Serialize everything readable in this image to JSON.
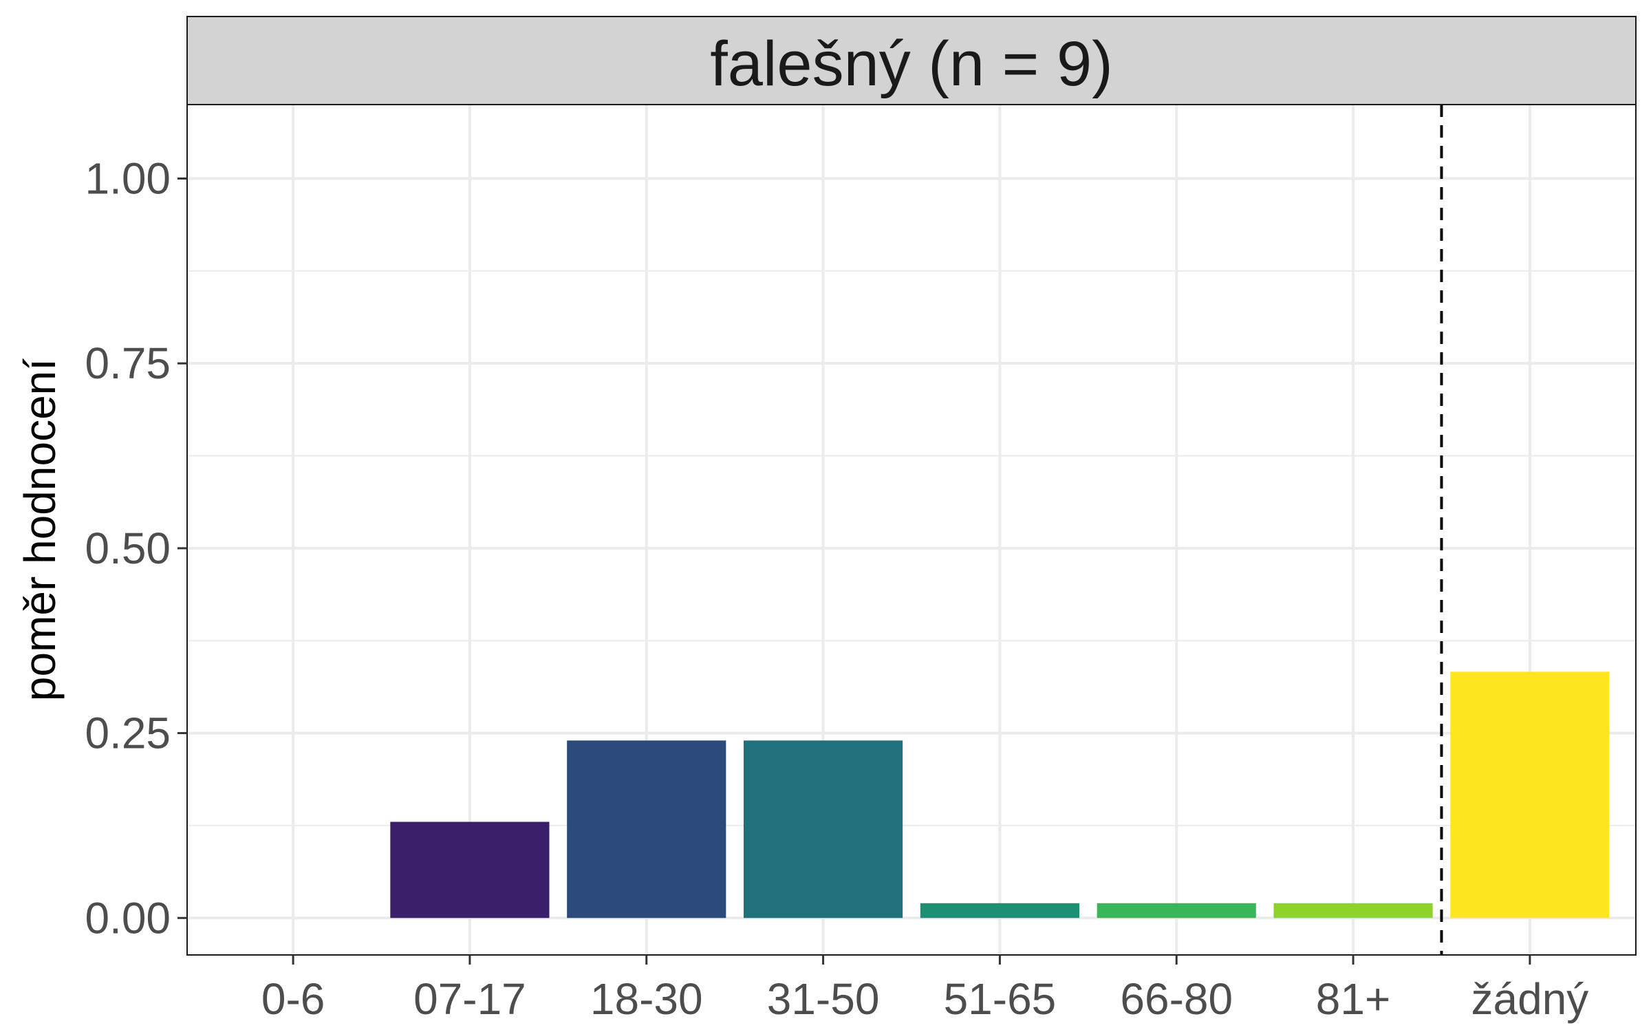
{
  "chart_data": {
    "type": "bar",
    "title": "falešný (n = 9)",
    "xlabel": "",
    "ylabel": "poměr hodnocení",
    "categories": [
      "0-6",
      "07-17",
      "18-30",
      "31-50",
      "51-65",
      "66-80",
      "81+",
      "žádný"
    ],
    "values": [
      0,
      0.13,
      0.24,
      0.24,
      0.02,
      0.02,
      0.02,
      0.333
    ],
    "colors": [
      "#440154",
      "#3b1f6a",
      "#2c4a7b",
      "#21707c",
      "#1e8f72",
      "#3bb55a",
      "#8dd32c",
      "#fde61f"
    ],
    "ylim": [
      -0.05,
      1.1
    ],
    "yticks": [
      0,
      0.25,
      0.5,
      0.75,
      1
    ],
    "ytick_labels": [
      "0.00",
      "0.25",
      "0.50",
      "0.75",
      "1.00"
    ],
    "reference_line": {
      "between": [
        "81+",
        "žádný"
      ],
      "style": "dashed",
      "color": "#000000"
    },
    "grid": true,
    "legend": "none"
  }
}
